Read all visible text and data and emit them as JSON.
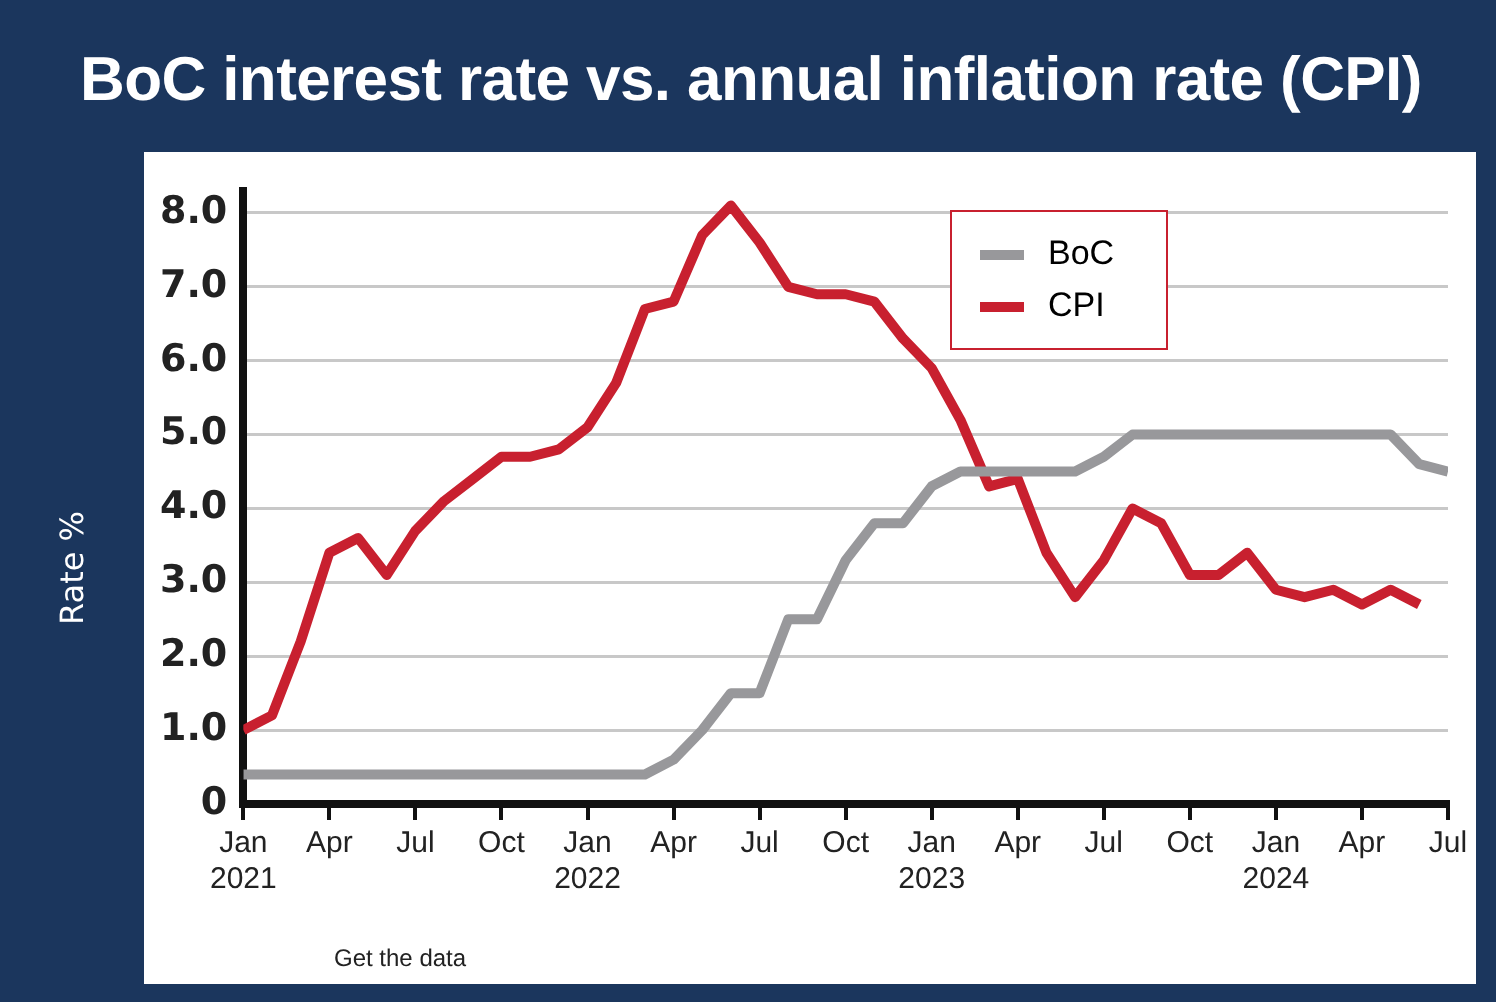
{
  "chart_data": {
    "type": "line",
    "title": "BoC interest rate vs. annual inflation rate (CPI)",
    "ylabel": "Rate %",
    "x": [
      "2021-01",
      "2021-02",
      "2021-03",
      "2021-04",
      "2021-05",
      "2021-06",
      "2021-07",
      "2021-08",
      "2021-09",
      "2021-10",
      "2021-11",
      "2021-12",
      "2022-01",
      "2022-02",
      "2022-03",
      "2022-04",
      "2022-05",
      "2022-06",
      "2022-07",
      "2022-08",
      "2022-09",
      "2022-10",
      "2022-11",
      "2022-12",
      "2023-01",
      "2023-02",
      "2023-03",
      "2023-04",
      "2023-05",
      "2023-06",
      "2023-07",
      "2023-08",
      "2023-09",
      "2023-10",
      "2023-11",
      "2023-12",
      "2024-01",
      "2024-02",
      "2024-03",
      "2024-04",
      "2024-05",
      "2024-06",
      "2024-07"
    ],
    "series": [
      {
        "name": "BoC",
        "color": "#98989b",
        "values": [
          0.4,
          0.4,
          0.4,
          0.4,
          0.4,
          0.4,
          0.4,
          0.4,
          0.4,
          0.4,
          0.4,
          0.4,
          0.4,
          0.4,
          0.4,
          0.6,
          1.0,
          1.5,
          1.5,
          2.5,
          2.5,
          3.3,
          3.8,
          3.8,
          4.3,
          4.5,
          4.5,
          4.5,
          4.5,
          4.5,
          4.7,
          5.0,
          5.0,
          5.0,
          5.0,
          5.0,
          5.0,
          5.0,
          5.0,
          5.0,
          5.0,
          4.6,
          4.5
        ]
      },
      {
        "name": "CPI",
        "color": "#c8202f",
        "values": [
          1.0,
          1.2,
          2.2,
          3.4,
          3.6,
          3.1,
          3.7,
          4.1,
          4.4,
          4.7,
          4.7,
          4.8,
          5.1,
          5.7,
          6.7,
          6.8,
          7.7,
          8.1,
          7.6,
          7.0,
          6.9,
          6.9,
          6.8,
          6.3,
          5.9,
          5.2,
          4.3,
          4.4,
          3.4,
          2.8,
          3.3,
          4.0,
          3.8,
          3.1,
          3.1,
          3.4,
          2.9,
          2.8,
          2.9,
          2.7,
          2.9,
          2.7,
          null
        ]
      }
    ],
    "xlim": [
      "2021-01",
      "2024-07"
    ],
    "xticks": [
      {
        "value": "2021-01",
        "label": "Jan\n2021"
      },
      {
        "value": "2021-04",
        "label": "Apr"
      },
      {
        "value": "2021-07",
        "label": "Jul"
      },
      {
        "value": "2021-10",
        "label": "Oct"
      },
      {
        "value": "2022-01",
        "label": "Jan\n2022"
      },
      {
        "value": "2022-04",
        "label": "Apr"
      },
      {
        "value": "2022-07",
        "label": "Jul"
      },
      {
        "value": "2022-10",
        "label": "Oct"
      },
      {
        "value": "2023-01",
        "label": "Jan\n2023"
      },
      {
        "value": "2023-04",
        "label": "Apr"
      },
      {
        "value": "2023-07",
        "label": "Jul"
      },
      {
        "value": "2023-10",
        "label": "Oct"
      },
      {
        "value": "2024-01",
        "label": "Jan\n2024"
      },
      {
        "value": "2024-04",
        "label": "Apr"
      },
      {
        "value": "2024-07",
        "label": "Jul"
      }
    ],
    "ylim": [
      0,
      8.3
    ],
    "yticks": [
      0,
      {
        "value": 1,
        "label": "1.0"
      },
      {
        "value": 2,
        "label": "2.0"
      },
      {
        "value": 3,
        "label": "3.0"
      },
      {
        "value": 4,
        "label": "4.0"
      },
      {
        "value": 5,
        "label": "5.0"
      },
      {
        "value": 6,
        "label": "6.0"
      },
      {
        "value": 7,
        "label": "7.0"
      },
      {
        "value": 8,
        "label": "8.0"
      }
    ],
    "grid": "y",
    "legend": "top right",
    "line_style": "solid",
    "annotations": [
      "Get the data"
    ]
  }
}
